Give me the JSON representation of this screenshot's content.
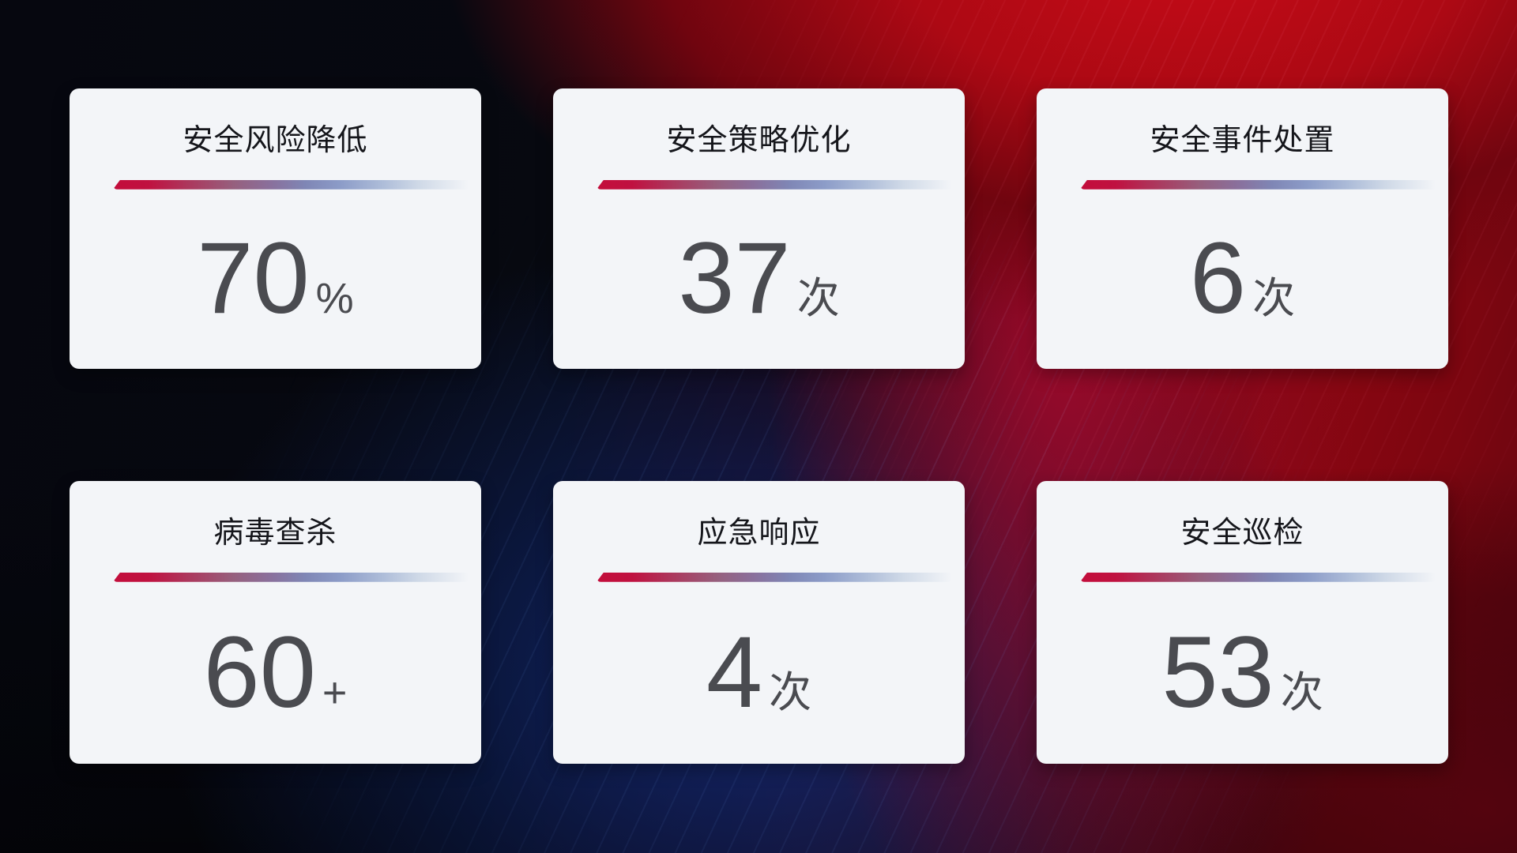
{
  "cards": [
    {
      "title": "安全风险降低",
      "value": "70",
      "suffix": "%"
    },
    {
      "title": "安全策略优化",
      "value": "37",
      "suffix": "次"
    },
    {
      "title": "安全事件处置",
      "value": "6",
      "suffix": "次"
    },
    {
      "title": "病毒查杀",
      "value": "60",
      "suffix": "+"
    },
    {
      "title": "应急响应",
      "value": "4",
      "suffix": "次"
    },
    {
      "title": "安全巡检",
      "value": "53",
      "suffix": "次"
    }
  ],
  "theme": {
    "card-bg": "#f3f5f8",
    "title-color": "#15161b",
    "value-color": "#4a4b50",
    "divider-red": "#c30d3b",
    "divider-blue": "#7f86b5",
    "divider-light": "#cfd9e7",
    "bg-dark": "#06070f",
    "bg-red-bright": "#c60b17",
    "bg-red-deep": "#70050f",
    "bg-crimson": "#a50a2d",
    "bg-blue-glow": "#122d7d"
  }
}
